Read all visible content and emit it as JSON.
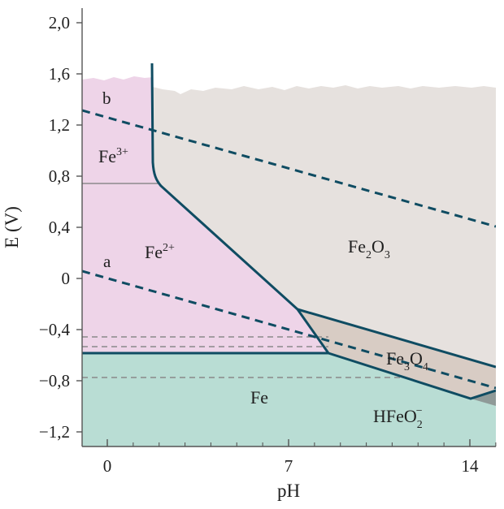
{
  "colors": {
    "fe3_region": "#eed4e8",
    "fe2_region": "#eed4e8",
    "fe2o3_region": "#e6e1de",
    "fe3o4_region": "#d8ccc4",
    "fe_region": "#b9ddd4",
    "hfeo2_region": "#b9ddd4",
    "boundary_line": "#0f4c62",
    "water_line": "#0f4c62",
    "reference_dashed": "#8a8a8a",
    "axis": "#555555"
  },
  "axes": {
    "x_title": "pH",
    "y_title": "E (V)",
    "x_ticks": [
      {
        "value": 0,
        "label": "0"
      },
      {
        "value": 7,
        "label": "7"
      },
      {
        "value": 14,
        "label": "14"
      }
    ],
    "y_ticks": [
      {
        "value": 2.0,
        "label": "2,0"
      },
      {
        "value": 1.6,
        "label": "1,6"
      },
      {
        "value": 1.2,
        "label": "1,2"
      },
      {
        "value": 0.8,
        "label": "0,8"
      },
      {
        "value": 0.4,
        "label": "0,4"
      },
      {
        "value": 0.0,
        "label": "0"
      },
      {
        "value": -0.4,
        "label": "−0,4"
      },
      {
        "value": -0.8,
        "label": "−0,8"
      },
      {
        "value": -1.2,
        "label": "−1,2"
      }
    ],
    "x_range": [
      -1,
      15
    ],
    "y_range": [
      -1.3,
      2.1
    ]
  },
  "regions": {
    "fe3": {
      "base": "Fe",
      "sup": "3+"
    },
    "fe2": {
      "base": "Fe",
      "sup": "2+"
    },
    "fe2o3": {
      "p1": "Fe",
      "s1": "2",
      "p2": "O",
      "s2": "3"
    },
    "fe3o4": {
      "p1": "Fe",
      "s1": "3",
      "p2": "O",
      "s2": "4"
    },
    "fe": {
      "text": "Fe"
    },
    "hfeo2": {
      "p1": "HFeO",
      "s1": "2",
      "sup": "−"
    }
  },
  "water_lines": {
    "a": "a",
    "b": "b"
  }
}
